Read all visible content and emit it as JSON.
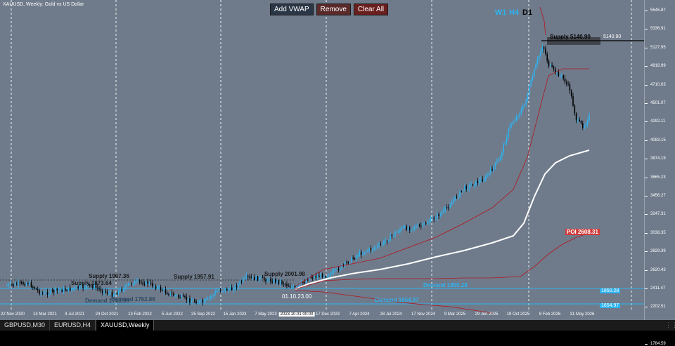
{
  "header": {
    "symbol_info": "XAUUSD, Weekly:  Gold vs US Dollar",
    "buttons": {
      "add_vwap": "Add VWAP",
      "remove": "Remove",
      "clear_all": "Clear All"
    },
    "timeframes": [
      {
        "label": "W1",
        "color": "#2db3f0"
      },
      {
        "label": "H4",
        "color": "#2db3f0"
      },
      {
        "label": "D1",
        "color": "#000000"
      }
    ]
  },
  "price_axis": [
    "5545.87",
    "5336.91",
    "5127.95",
    "4918.99",
    "4710.03",
    "4501.07",
    "4292.11",
    "4083.15",
    "3874.19",
    "3665.23",
    "3456.27",
    "3247.31",
    "3038.35",
    "2829.39",
    "2620.43",
    "2411.47",
    "2202.51",
    "1993.55",
    "1784.59"
  ],
  "date_axis": [
    "22 Nov 2020",
    "14 Mar 2021",
    "4 Jul 2021",
    "24 Oct 2021",
    "13 Feb 2022",
    "5 Jun 2022",
    "25 Sep 2022",
    "15 Jan 2023",
    "7 May 2023",
    "2023.10.01 00:00",
    "17 Dec 2023",
    "7 Apr 2024",
    "28 Jul 2024",
    "17 Nov 2024",
    "9 Mar 2025",
    "29 Jun 2025",
    "19 Oct 2025",
    "8 Feb 2026",
    "31 May 2026"
  ],
  "zones": {
    "supply": [
      {
        "label": "Supply 1967.36"
      },
      {
        "label": "Supply 1873.64"
      },
      {
        "label": "Supply 1957.91"
      },
      {
        "label": "Supply 2001.98"
      },
      {
        "label": "Supply 5140.90"
      }
    ],
    "demand": [
      {
        "label": "Demand 1748.59"
      },
      {
        "label": "Demand 1762.86"
      },
      {
        "label": "Demand 1850.28"
      },
      {
        "label": "Demand 1654.97"
      }
    ],
    "poi": {
      "label": "POI 2608.31"
    },
    "price_tags": [
      {
        "label": "5140.90",
        "bg": "#000000",
        "fg": "#ffffff"
      },
      {
        "label": "1850.28",
        "bg": "#2db3f0",
        "fg": "#ffffff"
      },
      {
        "label": "1654.97",
        "bg": "#2db3f0",
        "fg": "#ffffff"
      }
    ]
  },
  "vwap_anchor_label": "01.10.23.00",
  "colors": {
    "background": "#6f7b8b",
    "bull_candle": "#2db3f0",
    "bear_candle": "#000000",
    "vwap_main": "#ffffff",
    "vwap_bands": "#b3141b",
    "demand_line": "#2db3f0"
  },
  "tabs": [
    {
      "label": "GBPUSD,M30",
      "active": false
    },
    {
      "label": "EURUSD,H4",
      "active": false
    },
    {
      "label": "XAUUSD,Weekly",
      "active": true
    }
  ]
}
